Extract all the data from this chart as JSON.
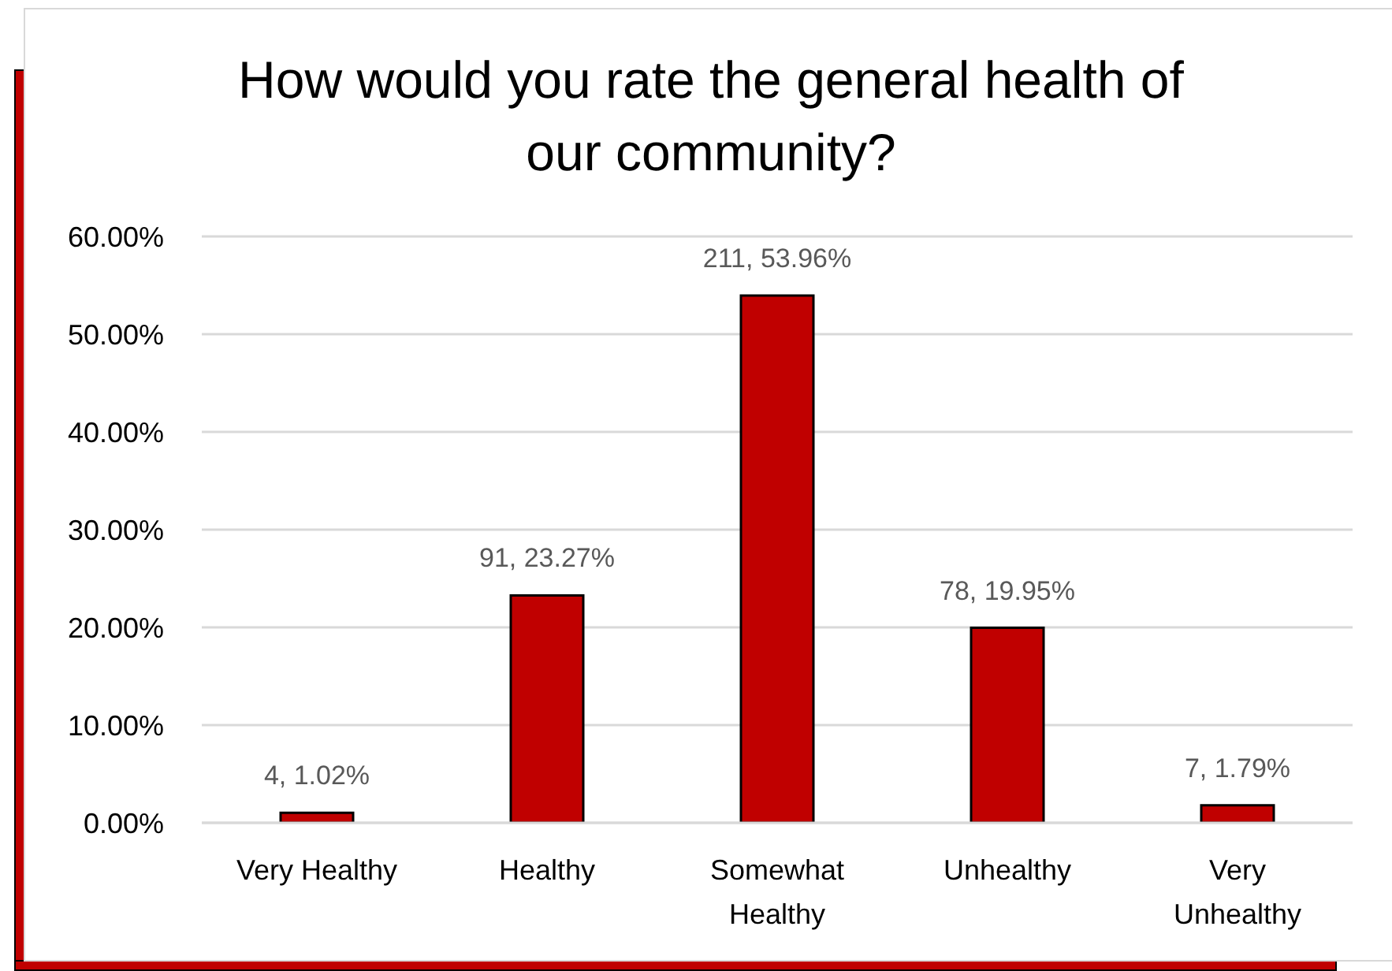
{
  "chart_data": {
    "type": "bar",
    "title": "How would you rate the general health of our community?",
    "categories": [
      "Very Healthy",
      "Healthy",
      "Somewhat Healthy",
      "Unhealthy",
      "Very Unhealthy"
    ],
    "values": [
      1.02,
      23.27,
      53.96,
      19.95,
      1.79
    ],
    "value_labels": [
      "4, 1.02%",
      "91, 23.27%",
      "211, 53.96%",
      "78, 19.95%",
      "7, 1.79%"
    ],
    "color": "#c00000",
    "ylim": [
      0,
      60
    ],
    "yticks": [
      {
        "value": 0,
        "label": "0.00%"
      },
      {
        "value": 10,
        "label": "10.00%"
      },
      {
        "value": 20,
        "label": "20.00%"
      },
      {
        "value": 30,
        "label": "30.00%"
      },
      {
        "value": 40,
        "label": "40.00%"
      },
      {
        "value": 50,
        "label": "50.00%"
      },
      {
        "value": 60,
        "label": "60.00%"
      }
    ],
    "grid": "y"
  }
}
